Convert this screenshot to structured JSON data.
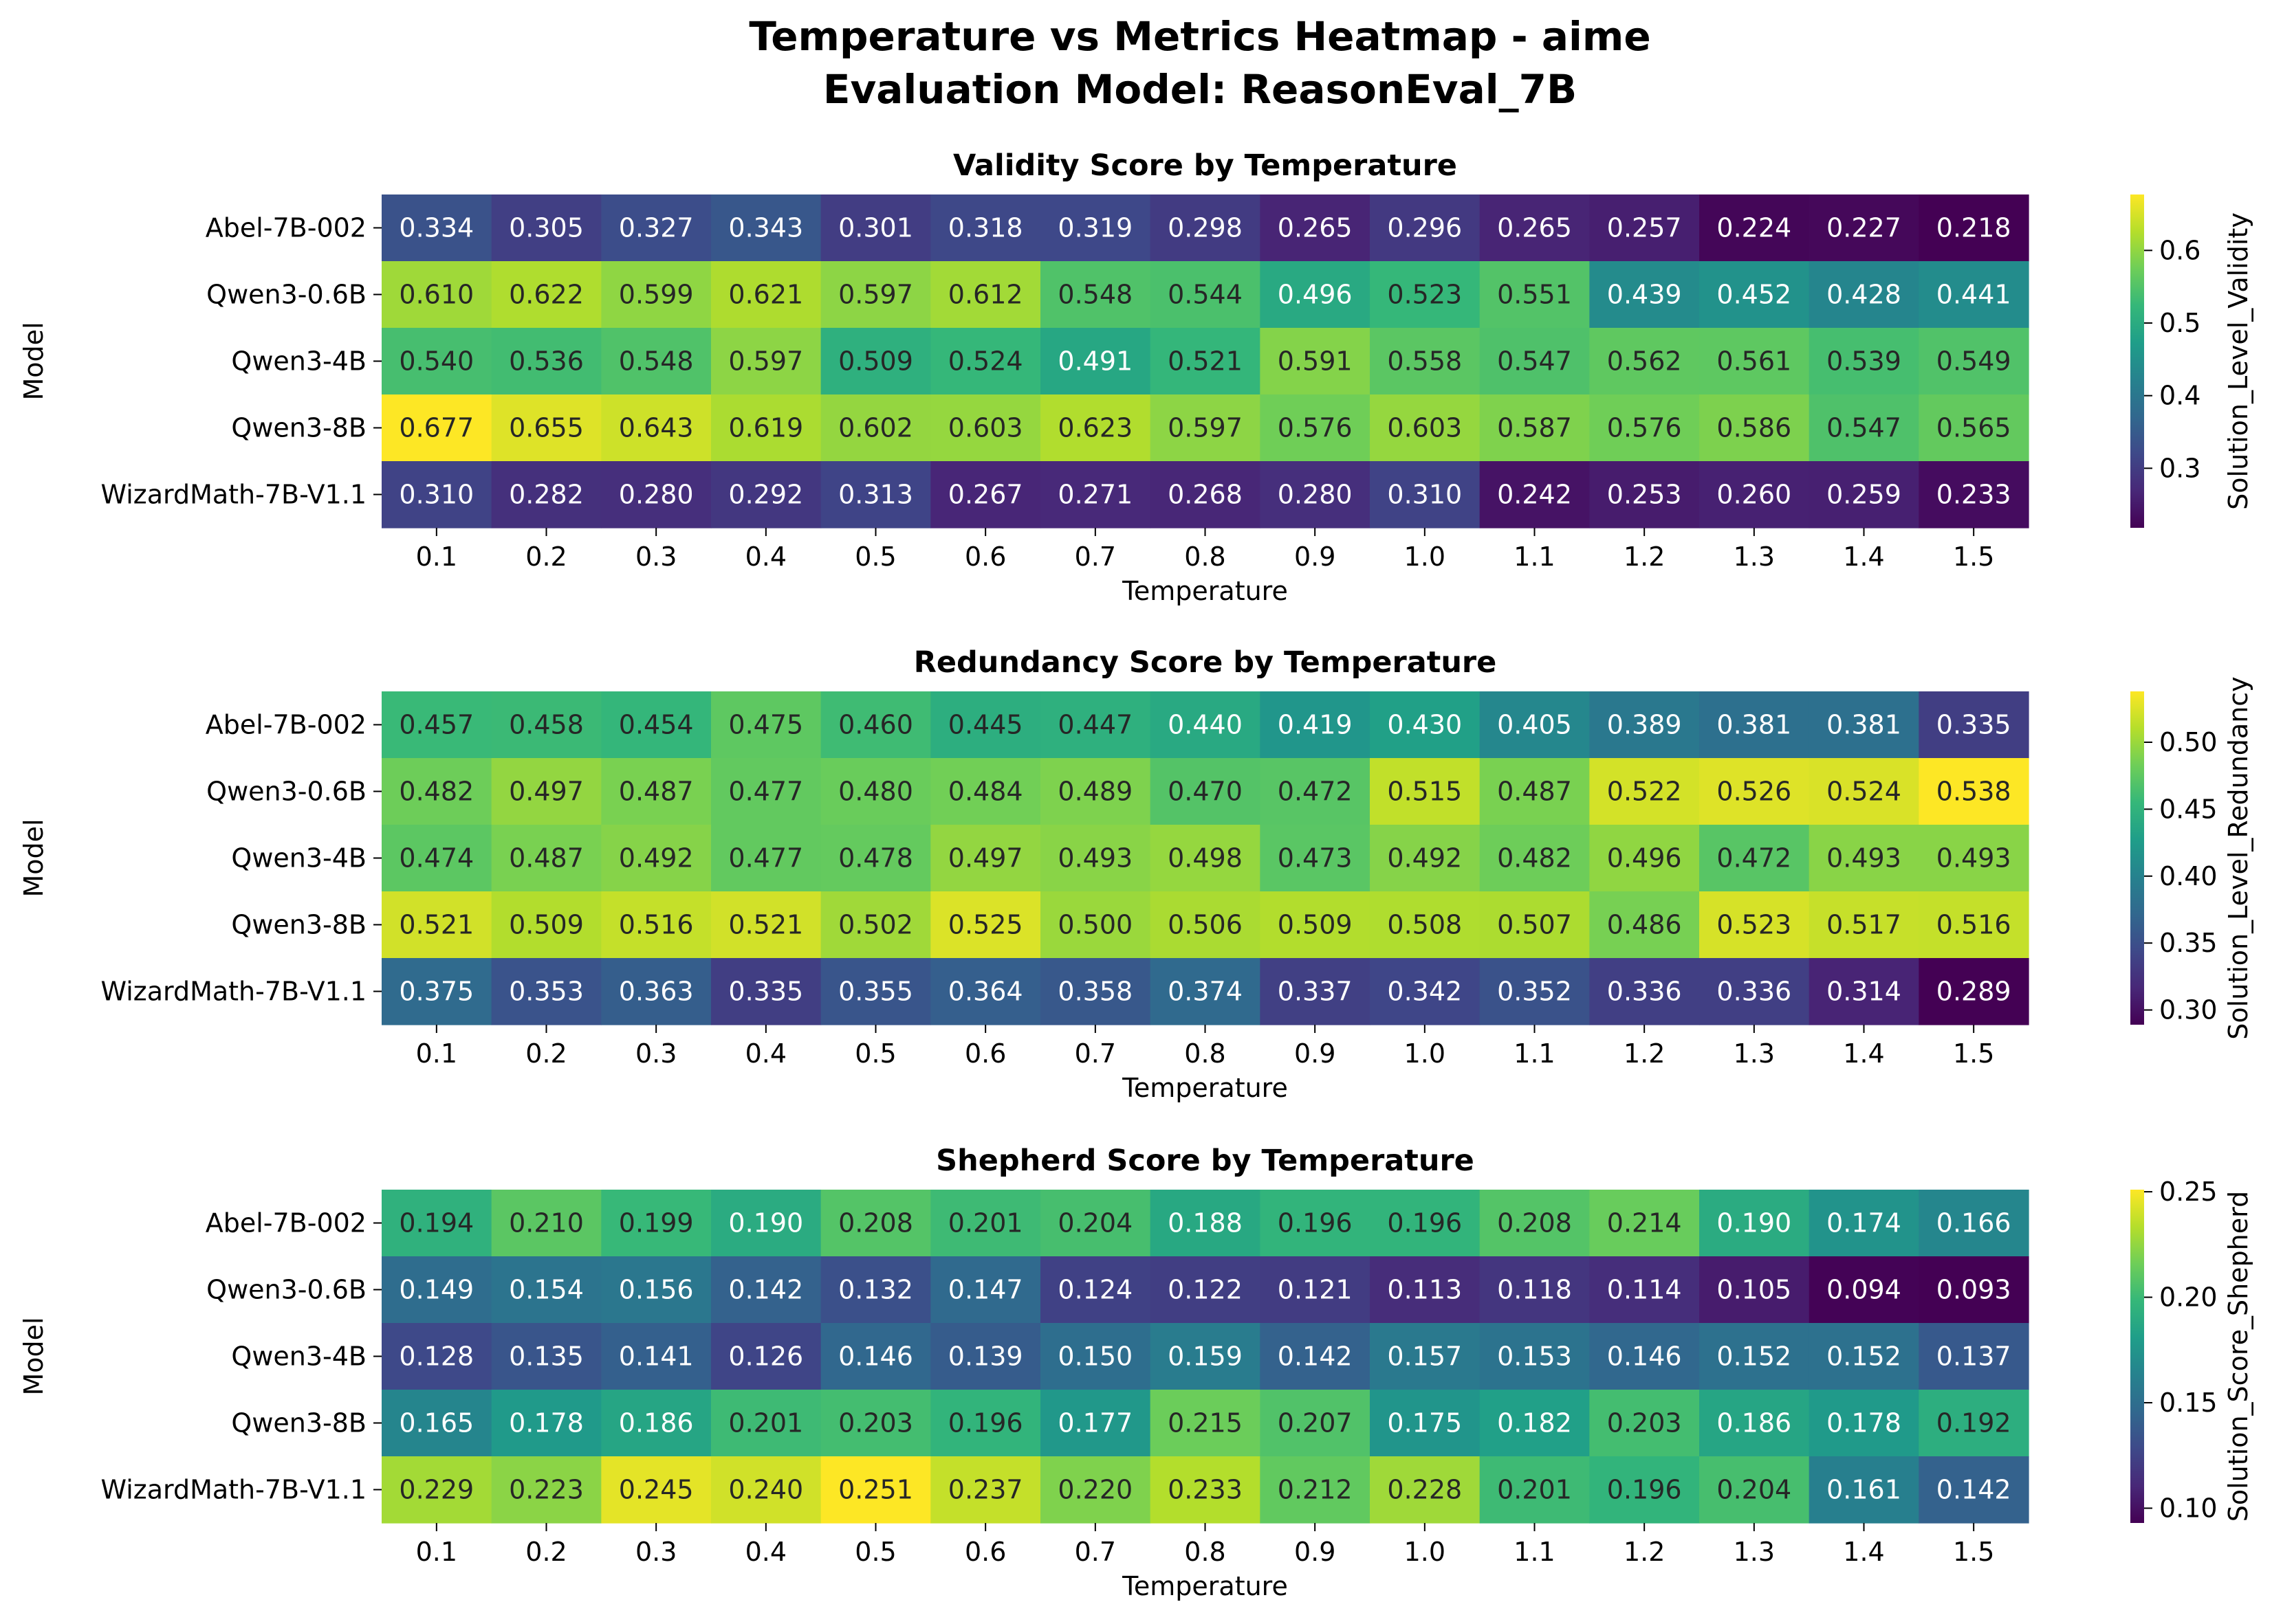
{
  "figure": {
    "title_line1": "Temperature vs Metrics Heatmap - aime",
    "title_line2": "Evaluation Model: ReasonEval_7B"
  },
  "colormap": "viridis",
  "chart_data": [
    {
      "type": "heatmap",
      "title": "Validity Score by Temperature",
      "xlabel": "Temperature",
      "ylabel": "Model",
      "colorbar_label": "Solution_Level_Validity",
      "colorbar_ticks": [
        "0.3",
        "0.4",
        "0.5",
        "0.6"
      ],
      "vmin": 0.218,
      "vmax": 0.677,
      "x": [
        "0.1",
        "0.2",
        "0.3",
        "0.4",
        "0.5",
        "0.6",
        "0.7",
        "0.8",
        "0.9",
        "1.0",
        "1.1",
        "1.2",
        "1.3",
        "1.4",
        "1.5"
      ],
      "y": [
        "Abel-7B-002",
        "Qwen3-0.6B",
        "Qwen3-4B",
        "Qwen3-8B",
        "WizardMath-7B-V1.1"
      ],
      "values": [
        [
          "0.334",
          "0.305",
          "0.327",
          "0.343",
          "0.301",
          "0.318",
          "0.319",
          "0.298",
          "0.265",
          "0.296",
          "0.265",
          "0.257",
          "0.224",
          "0.227",
          "0.218"
        ],
        [
          "0.610",
          "0.622",
          "0.599",
          "0.621",
          "0.597",
          "0.612",
          "0.548",
          "0.544",
          "0.496",
          "0.523",
          "0.551",
          "0.439",
          "0.452",
          "0.428",
          "0.441"
        ],
        [
          "0.540",
          "0.536",
          "0.548",
          "0.597",
          "0.509",
          "0.524",
          "0.491",
          "0.521",
          "0.591",
          "0.558",
          "0.547",
          "0.562",
          "0.561",
          "0.539",
          "0.549"
        ],
        [
          "0.677",
          "0.655",
          "0.643",
          "0.619",
          "0.602",
          "0.603",
          "0.623",
          "0.597",
          "0.576",
          "0.603",
          "0.587",
          "0.576",
          "0.586",
          "0.547",
          "0.565"
        ],
        [
          "0.310",
          "0.282",
          "0.280",
          "0.292",
          "0.313",
          "0.267",
          "0.271",
          "0.268",
          "0.280",
          "0.310",
          "0.242",
          "0.253",
          "0.260",
          "0.259",
          "0.233"
        ]
      ]
    },
    {
      "type": "heatmap",
      "title": "Redundancy Score by Temperature",
      "xlabel": "Temperature",
      "ylabel": "Model",
      "colorbar_label": "Solution_Level_Redundancy",
      "colorbar_ticks": [
        "0.30",
        "0.35",
        "0.40",
        "0.45",
        "0.50"
      ],
      "vmin": 0.289,
      "vmax": 0.538,
      "x": [
        "0.1",
        "0.2",
        "0.3",
        "0.4",
        "0.5",
        "0.6",
        "0.7",
        "0.8",
        "0.9",
        "1.0",
        "1.1",
        "1.2",
        "1.3",
        "1.4",
        "1.5"
      ],
      "y": [
        "Abel-7B-002",
        "Qwen3-0.6B",
        "Qwen3-4B",
        "Qwen3-8B",
        "WizardMath-7B-V1.1"
      ],
      "values": [
        [
          "0.457",
          "0.458",
          "0.454",
          "0.475",
          "0.460",
          "0.445",
          "0.447",
          "0.440",
          "0.419",
          "0.430",
          "0.405",
          "0.389",
          "0.381",
          "0.381",
          "0.335"
        ],
        [
          "0.482",
          "0.497",
          "0.487",
          "0.477",
          "0.480",
          "0.484",
          "0.489",
          "0.470",
          "0.472",
          "0.515",
          "0.487",
          "0.522",
          "0.526",
          "0.524",
          "0.538"
        ],
        [
          "0.474",
          "0.487",
          "0.492",
          "0.477",
          "0.478",
          "0.497",
          "0.493",
          "0.498",
          "0.473",
          "0.492",
          "0.482",
          "0.496",
          "0.472",
          "0.493",
          "0.493"
        ],
        [
          "0.521",
          "0.509",
          "0.516",
          "0.521",
          "0.502",
          "0.525",
          "0.500",
          "0.506",
          "0.509",
          "0.508",
          "0.507",
          "0.486",
          "0.523",
          "0.517",
          "0.516"
        ],
        [
          "0.375",
          "0.353",
          "0.363",
          "0.335",
          "0.355",
          "0.364",
          "0.358",
          "0.374",
          "0.337",
          "0.342",
          "0.352",
          "0.336",
          "0.336",
          "0.314",
          "0.289"
        ]
      ]
    },
    {
      "type": "heatmap",
      "title": "Shepherd Score by Temperature",
      "xlabel": "Temperature",
      "ylabel": "Model",
      "colorbar_label": "Solution_Score_Shepherd",
      "colorbar_ticks": [
        "0.10",
        "0.15",
        "0.20",
        "0.25"
      ],
      "vmin": 0.093,
      "vmax": 0.251,
      "x": [
        "0.1",
        "0.2",
        "0.3",
        "0.4",
        "0.5",
        "0.6",
        "0.7",
        "0.8",
        "0.9",
        "1.0",
        "1.1",
        "1.2",
        "1.3",
        "1.4",
        "1.5"
      ],
      "y": [
        "Abel-7B-002",
        "Qwen3-0.6B",
        "Qwen3-4B",
        "Qwen3-8B",
        "WizardMath-7B-V1.1"
      ],
      "values": [
        [
          "0.194",
          "0.210",
          "0.199",
          "0.190",
          "0.208",
          "0.201",
          "0.204",
          "0.188",
          "0.196",
          "0.196",
          "0.208",
          "0.214",
          "0.190",
          "0.174",
          "0.166"
        ],
        [
          "0.149",
          "0.154",
          "0.156",
          "0.142",
          "0.132",
          "0.147",
          "0.124",
          "0.122",
          "0.121",
          "0.113",
          "0.118",
          "0.114",
          "0.105",
          "0.094",
          "0.093"
        ],
        [
          "0.128",
          "0.135",
          "0.141",
          "0.126",
          "0.146",
          "0.139",
          "0.150",
          "0.159",
          "0.142",
          "0.157",
          "0.153",
          "0.146",
          "0.152",
          "0.152",
          "0.137"
        ],
        [
          "0.165",
          "0.178",
          "0.186",
          "0.201",
          "0.203",
          "0.196",
          "0.177",
          "0.215",
          "0.207",
          "0.175",
          "0.182",
          "0.203",
          "0.186",
          "0.178",
          "0.192"
        ],
        [
          "0.229",
          "0.223",
          "0.245",
          "0.240",
          "0.251",
          "0.237",
          "0.220",
          "0.233",
          "0.212",
          "0.228",
          "0.201",
          "0.196",
          "0.204",
          "0.161",
          "0.142"
        ]
      ]
    }
  ]
}
